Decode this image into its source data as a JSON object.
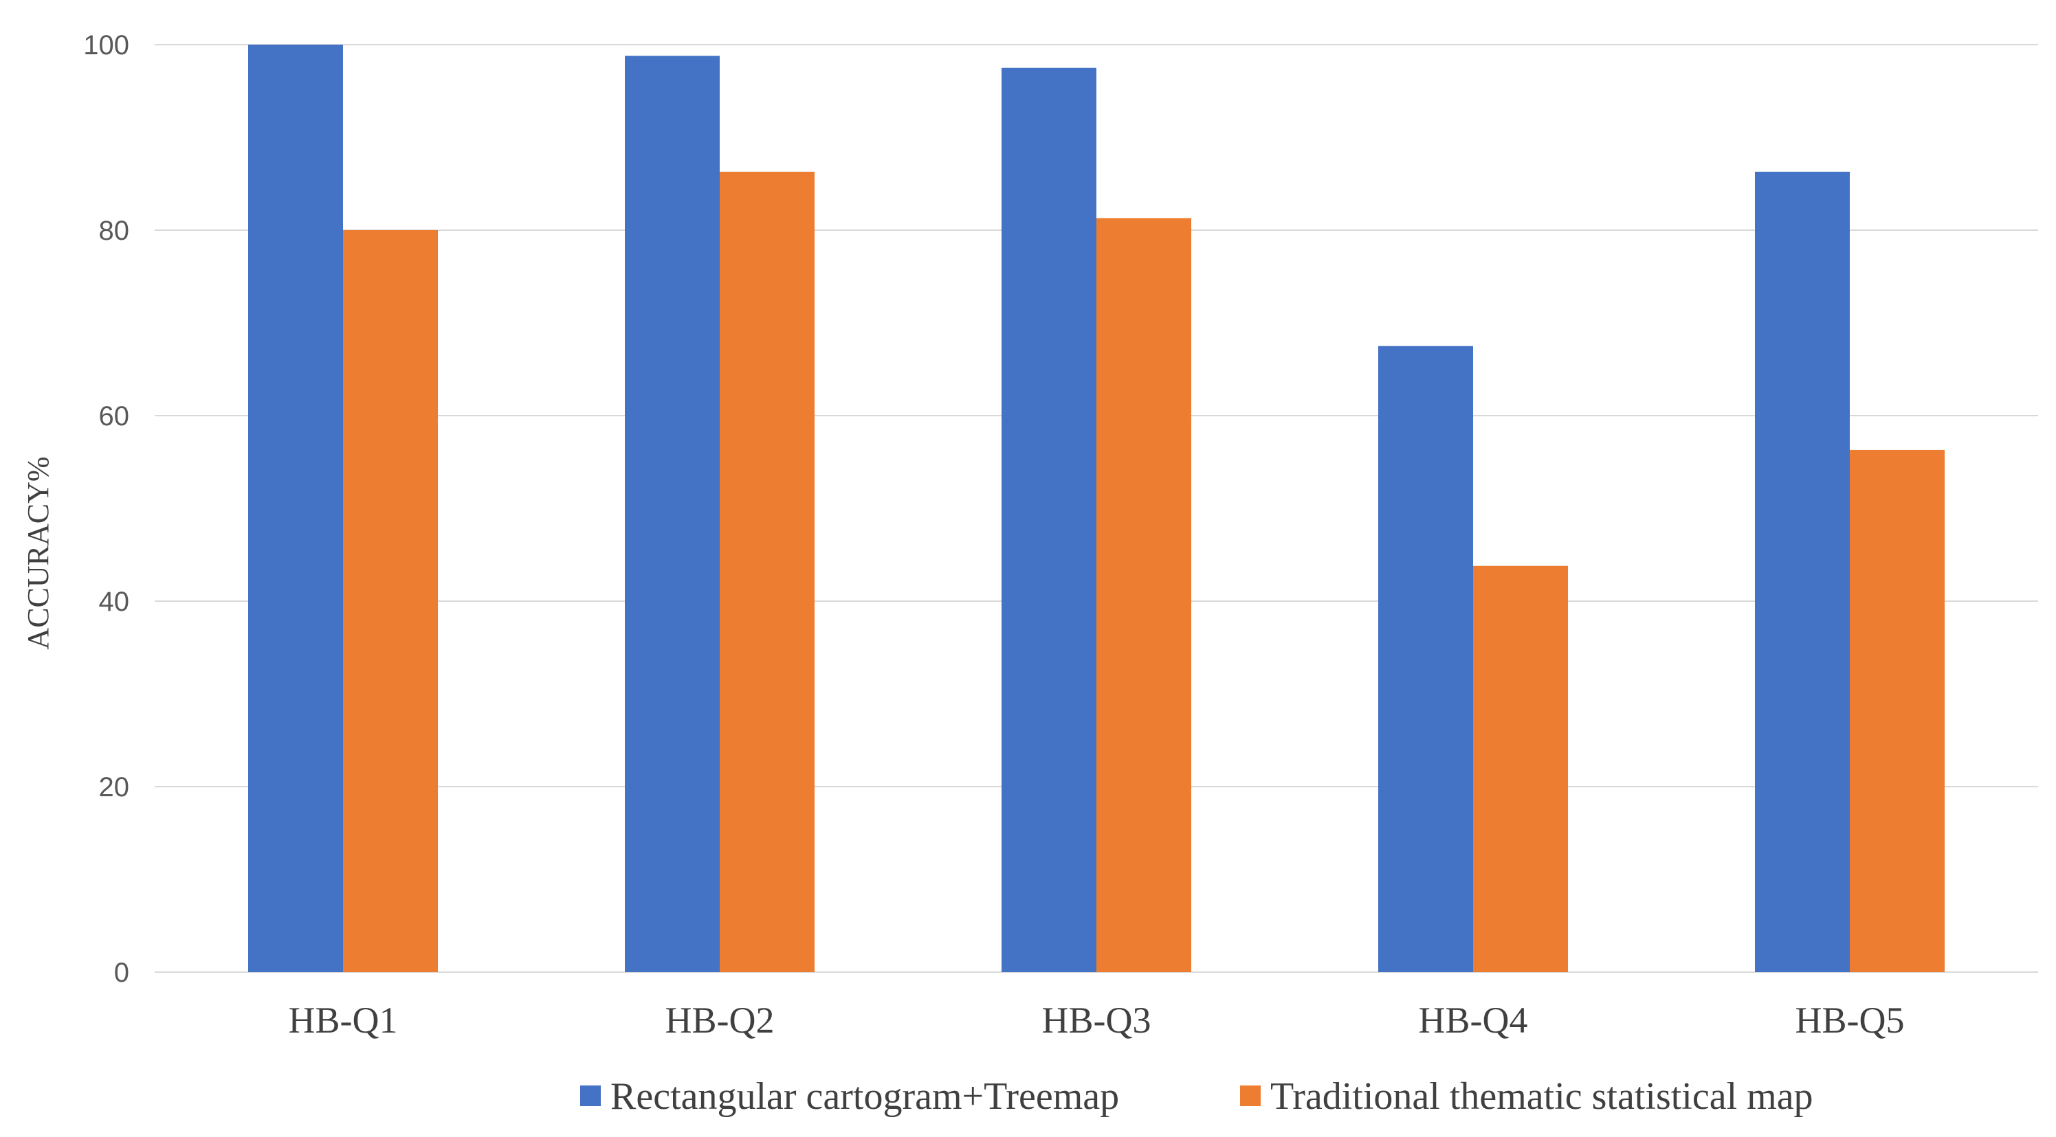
{
  "chart_data": {
    "type": "bar",
    "title": "",
    "xlabel": "",
    "ylabel": "ACCURACY%",
    "ylim": [
      0,
      100
    ],
    "yticks": [
      0,
      20,
      40,
      60,
      80,
      100
    ],
    "grid": true,
    "legend_position": "bottom",
    "categories": [
      "HB-Q1",
      "HB-Q2",
      "HB-Q3",
      "HB-Q4",
      "HB-Q5"
    ],
    "series": [
      {
        "name": "Rectangular cartogram+Treemap",
        "color": "#4472C4",
        "values": [
          100,
          98.8,
          97.5,
          67.5,
          86.3
        ]
      },
      {
        "name": "Traditional thematic statistical map",
        "color": "#ED7D31",
        "values": [
          80,
          86.3,
          81.3,
          43.8,
          56.3
        ]
      }
    ]
  }
}
